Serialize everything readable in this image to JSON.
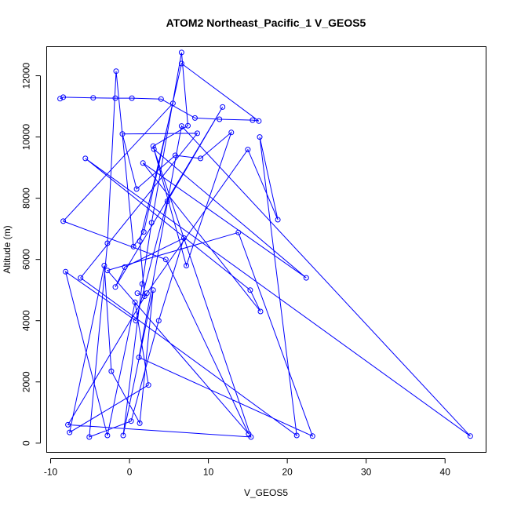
{
  "chart_data": {
    "type": "line",
    "title": "ATOM2 Northeast_Pacific_1 V_GEOS5",
    "xlabel": "V_GEOS5",
    "ylabel": "Altitude (m)",
    "xlim": [
      -10.5,
      45.2
    ],
    "ylim": [
      -300,
      12950
    ],
    "xticks": [
      -10,
      0,
      10,
      20,
      30,
      40
    ],
    "yticks": [
      0,
      2000,
      4000,
      6000,
      8000,
      10000,
      12000
    ],
    "grid": false,
    "marker": "open-circle",
    "color": "#0000ff",
    "series": [
      {
        "x": [
          -8.8,
          -8.4,
          -4.6,
          -1.8,
          0.3,
          4.0,
          8.3,
          11.4,
          15.6,
          16.4,
          6.6,
          1.8,
          0.5,
          -1.7,
          -2.8,
          -5.1,
          0.2,
          3.7,
          6.9,
          -0.6,
          -1.8,
          11.8,
          4.8,
          0.8,
          -8.1,
          -2.8,
          0.7,
          2.4,
          -7.6,
          -3.2,
          -2.3,
          1.3,
          3.0,
          -0.8,
          1.6,
          2.8,
          6.6,
          7.4,
          3.0,
          7.2,
          12.9,
          9.0,
          5.8,
          0.9,
          -0.9,
          8.6,
          -6.2,
          21.2,
          16.5,
          18.8,
          15.0,
          2.2,
          -7.8,
          15.4,
          3.1,
          22.4,
          1.7,
          16.6,
          15.3,
          -5.6,
          43.2,
          6.6,
          1.2,
          23.2,
          13.8,
          -2.8,
          15.1,
          4.6,
          -8.4,
          5.5,
          1.3,
          1.9,
          1.0
        ],
        "y": [
          11250,
          11300,
          11280,
          11270,
          11270,
          11240,
          10620,
          10580,
          10550,
          10520,
          12400,
          6900,
          6420,
          12150,
          6530,
          200,
          720,
          4000,
          6700,
          5750,
          5100,
          10980,
          7900,
          4000,
          5600,
          250,
          4600,
          1900,
          350,
          5800,
          2350,
          650,
          5000,
          250,
          5200,
          7200,
          12760,
          10370,
          9700,
          5800,
          10150,
          9300,
          9400,
          8300,
          10100,
          10120,
          5400,
          250,
          10000,
          7300,
          9590,
          4900,
          600,
          200,
          9600,
          5400,
          9150,
          4300,
          5000,
          9300,
          230,
          10360,
          2800,
          230,
          6880,
          5640,
          300,
          6000,
          7250,
          11100,
          6600,
          4800,
          4900
        ]
      }
    ]
  }
}
